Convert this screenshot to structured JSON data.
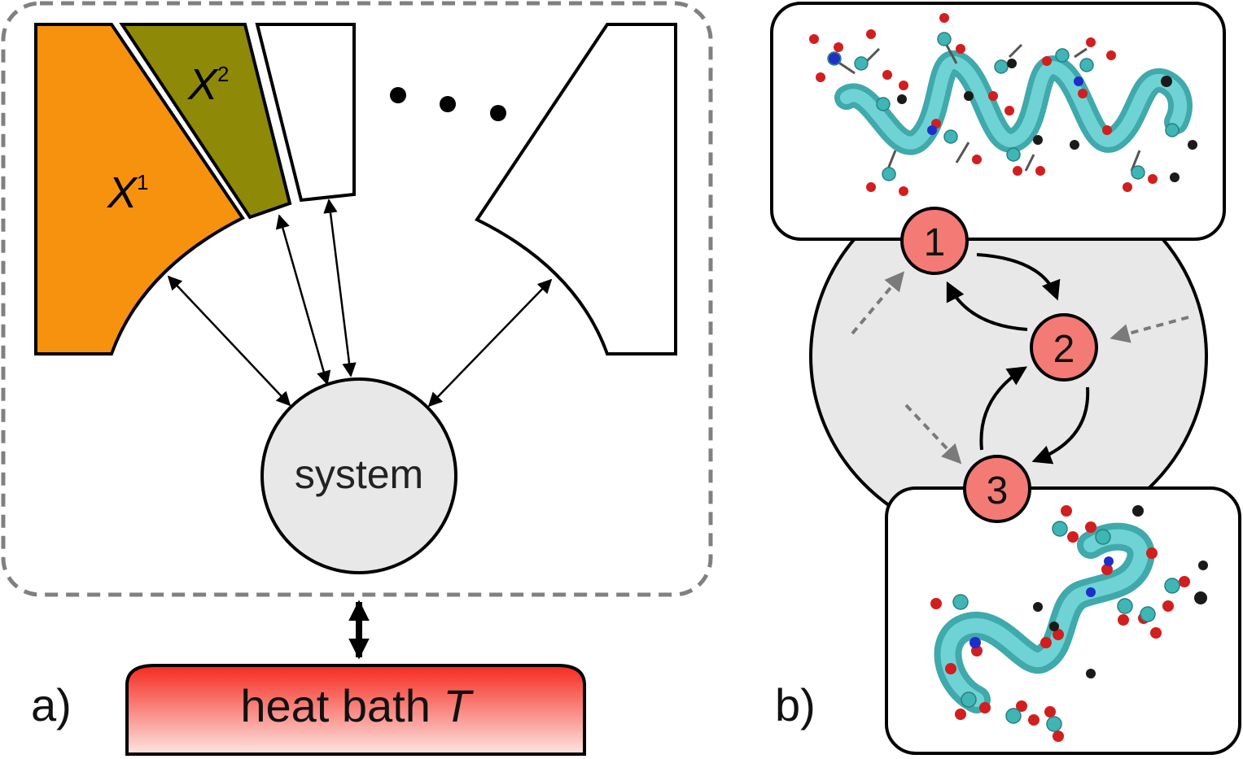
{
  "panel_a": {
    "label": "a)",
    "reservoir_1": {
      "symbol": "X",
      "sup": "1",
      "color": "#f7920f"
    },
    "reservoir_2": {
      "symbol": "X",
      "sup": "2",
      "color": "#8e8a07"
    },
    "system_label": "system",
    "system_color": "#e8e8e8",
    "bath_label": "heat bath",
    "bath_symbol": "T",
    "bath_color_top": "#f52a1f",
    "bath_color_bottom": "#fde0dc"
  },
  "panel_b": {
    "label": "b)",
    "states": [
      "1",
      "2",
      "3"
    ],
    "state_color": "#f47a76",
    "region_color": "#e8e8e8",
    "helix_color": "#5cc6c8"
  }
}
